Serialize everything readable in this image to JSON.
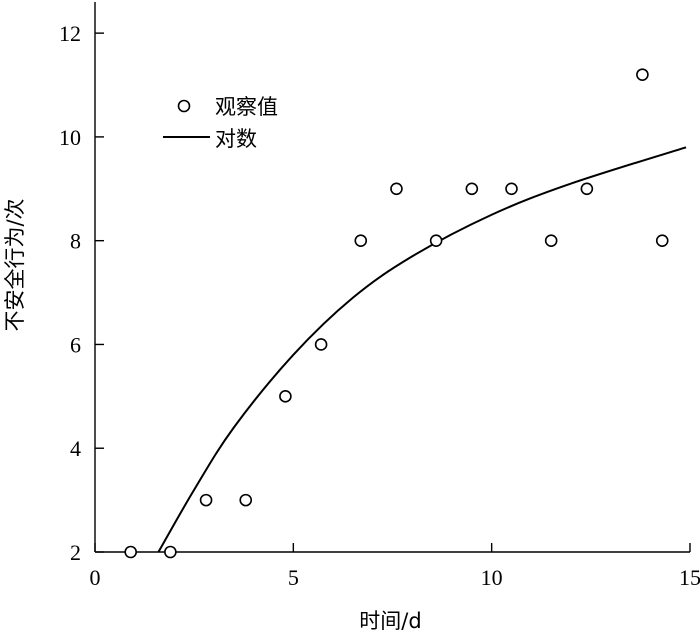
{
  "chart_data": {
    "type": "scatter",
    "xlabel": "时间/d",
    "ylabel": "不安全行为/次",
    "xlim": [
      0,
      15
    ],
    "ylim": [
      2,
      12.6
    ],
    "x_ticks": [
      0,
      5,
      10,
      15
    ],
    "y_ticks": [
      2,
      4,
      6,
      8,
      10,
      12
    ],
    "legend_position": "upper-left",
    "series": [
      {
        "name": "观察值",
        "marker": "open-circle",
        "points": [
          {
            "x": 0.9,
            "y": 2
          },
          {
            "x": 1.9,
            "y": 2
          },
          {
            "x": 2.8,
            "y": 3
          },
          {
            "x": 3.8,
            "y": 3
          },
          {
            "x": 4.8,
            "y": 5
          },
          {
            "x": 5.7,
            "y": 6
          },
          {
            "x": 6.7,
            "y": 8
          },
          {
            "x": 7.6,
            "y": 9
          },
          {
            "x": 8.6,
            "y": 8
          },
          {
            "x": 9.5,
            "y": 9
          },
          {
            "x": 10.5,
            "y": 9
          },
          {
            "x": 11.5,
            "y": 8
          },
          {
            "x": 12.4,
            "y": 9
          },
          {
            "x": 13.8,
            "y": 11.2
          },
          {
            "x": 14.3,
            "y": 8
          }
        ]
      },
      {
        "name": "对数",
        "line": "solid",
        "points": [
          {
            "x": 1.6,
            "y": 2
          },
          {
            "x": 2.5,
            "y": 3.2
          },
          {
            "x": 3.5,
            "y": 4.4
          },
          {
            "x": 5.0,
            "y": 5.8
          },
          {
            "x": 6.5,
            "y": 6.9
          },
          {
            "x": 8.0,
            "y": 7.7
          },
          {
            "x": 10.0,
            "y": 8.5
          },
          {
            "x": 12.0,
            "y": 9.1
          },
          {
            "x": 14.9,
            "y": 9.8
          }
        ]
      }
    ]
  }
}
